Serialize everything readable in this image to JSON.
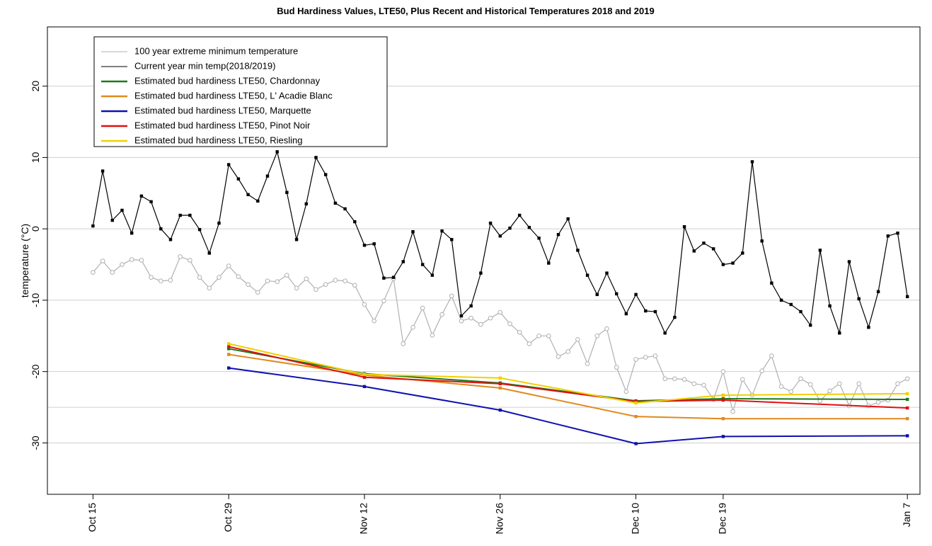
{
  "chart_data": {
    "type": "line",
    "title": "Bud Hardiness Values, LTE50, Plus Recent and Historical Temperatures 2018 and 2019",
    "y_label": "temperature (°C)",
    "x": [
      0,
      1,
      2,
      3,
      4,
      5,
      6,
      7,
      8,
      9,
      10,
      11,
      12,
      13,
      14,
      15,
      16,
      17,
      18,
      19,
      20,
      21,
      22,
      23,
      24,
      25,
      26,
      27,
      28,
      29,
      30,
      31,
      32,
      33,
      34,
      35,
      36,
      37,
      38,
      39,
      40,
      41,
      42,
      43,
      44,
      45,
      46,
      47,
      48,
      49,
      50,
      51,
      52,
      53,
      54,
      55,
      56,
      57,
      58,
      59,
      60,
      61,
      62,
      63,
      64,
      65,
      66,
      67,
      68,
      69,
      70,
      71,
      72,
      73,
      74,
      75,
      76,
      77,
      78,
      79,
      80,
      81,
      82,
      83,
      84
    ],
    "xlim": [
      -4.7,
      85.3
    ],
    "xticks": [
      {
        "value": 0,
        "label": "Oct 15"
      },
      {
        "value": 14,
        "label": "Oct 29"
      },
      {
        "value": 28,
        "label": "Nov 12"
      },
      {
        "value": 42,
        "label": "Nov 26"
      },
      {
        "value": 56,
        "label": "Dec 10"
      },
      {
        "value": 65,
        "label": "Dec 19"
      },
      {
        "value": 84,
        "label": "Jan 7"
      }
    ],
    "ylim": [
      -37.2,
      28.3
    ],
    "yticks": [
      -30,
      -20,
      -10,
      0,
      10,
      20
    ],
    "grid_y": [
      -30,
      -25,
      -20,
      -10,
      0,
      10,
      20
    ],
    "series": [
      {
        "name": "100 year extreme minimum temperature",
        "color": "#b0b0b0",
        "marker": "circle",
        "values": [
          -6.1,
          -4.5,
          -6.1,
          -5.0,
          -4.3,
          -4.4,
          -6.8,
          -7.3,
          -7.2,
          -3.9,
          -4.4,
          -6.8,
          -8.3,
          -6.8,
          -5.2,
          -6.7,
          -7.8,
          -8.9,
          -7.3,
          -7.4,
          -6.5,
          -8.3,
          -7.0,
          -8.5,
          -7.8,
          -7.2,
          -7.3,
          -7.9,
          -10.6,
          -12.9,
          -10.1,
          -7.0,
          -16.1,
          -13.8,
          -11.1,
          -14.9,
          -12.0,
          -9.4,
          -12.9,
          -12.5,
          -13.4,
          -12.5,
          -11.7,
          -13.3,
          -14.5,
          -16.1,
          -15.0,
          -15.0,
          -17.9,
          -17.2,
          -15.5,
          -18.9,
          -15.0,
          -14.0,
          -19.4,
          -22.8,
          -18.3,
          -18.0,
          -17.8,
          -21.0,
          -21.0,
          -21.1,
          -21.7,
          -21.9,
          -23.9,
          -20.0,
          -25.6,
          -21.1,
          -23.3,
          -19.9,
          -17.8,
          -22.1,
          -22.8,
          -21.0,
          -21.8,
          -24.1,
          -22.7,
          -21.7,
          -24.8,
          -21.7,
          -24.8,
          -24.3,
          -24.0,
          -21.7,
          -21.0
        ]
      },
      {
        "name": "Current year min temp(2018/2019)",
        "color": "#000000",
        "marker": "square",
        "values": [
          0.4,
          8.1,
          1.2,
          2.6,
          -0.6,
          4.6,
          3.8,
          0.0,
          -1.5,
          1.9,
          1.9,
          -0.1,
          -3.4,
          0.8,
          9.0,
          7.0,
          4.8,
          3.9,
          7.4,
          10.8,
          5.1,
          -1.5,
          3.5,
          10.0,
          7.6,
          3.6,
          2.8,
          1.0,
          -2.3,
          -2.1,
          -6.9,
          -6.8,
          -4.6,
          -0.4,
          -5.0,
          -6.5,
          -0.3,
          -1.5,
          -12.2,
          -10.8,
          -6.2,
          0.8,
          -1.0,
          0.1,
          1.9,
          0.2,
          -1.3,
          -4.8,
          -0.8,
          1.4,
          -3.0,
          -6.5,
          -9.2,
          -6.2,
          -9.1,
          -11.9,
          -9.2,
          -11.5,
          -11.6,
          -14.6,
          -12.4,
          0.3,
          -3.1,
          -2.0,
          -2.8,
          -5.0,
          -4.8,
          -3.4,
          9.4,
          -1.7,
          -7.6,
          -10.0,
          -10.6,
          -11.6,
          -13.5,
          -3.0,
          -10.8,
          -14.6,
          -4.6,
          -9.8,
          -13.8,
          -8.8,
          -1.0,
          -0.6,
          -9.5
        ]
      },
      {
        "name": "Estimated bud hardiness LTE50, Chardonnay",
        "color": "#1a7a1a",
        "marker": "square",
        "x": [
          14,
          28,
          42,
          56,
          65,
          84
        ],
        "values": [
          -16.8,
          -20.3,
          -21.6,
          -24.1,
          -23.8,
          -23.9
        ]
      },
      {
        "name": "Estimated bud hardiness LTE50, L' Acadie Blanc",
        "color": "#e08a1e",
        "marker": "square",
        "x": [
          14,
          28,
          42,
          56,
          65,
          84
        ],
        "values": [
          -17.6,
          -20.5,
          -22.3,
          -26.3,
          -26.6,
          -26.6
        ]
      },
      {
        "name": "Estimated bud hardiness LTE50, Marquette",
        "color": "#1010b0",
        "marker": "square",
        "x": [
          14,
          28,
          42,
          56,
          65,
          84
        ],
        "values": [
          -19.5,
          -22.1,
          -25.4,
          -30.1,
          -29.1,
          -29.0
        ]
      },
      {
        "name": "Estimated bud hardiness LTE50, Pinot Noir",
        "color": "#e01010",
        "marker": "square",
        "x": [
          14,
          28,
          42,
          56,
          65,
          84
        ],
        "values": [
          -16.5,
          -20.8,
          -21.7,
          -24.2,
          -24.0,
          -25.1
        ]
      },
      {
        "name": "Estimated bud hardiness LTE50, Riesling",
        "color": "#f0d000",
        "marker": "square",
        "x": [
          14,
          28,
          42,
          56,
          65,
          84
        ],
        "values": [
          -16.1,
          -20.4,
          -20.9,
          -24.4,
          -23.3,
          -23.1
        ]
      }
    ]
  }
}
